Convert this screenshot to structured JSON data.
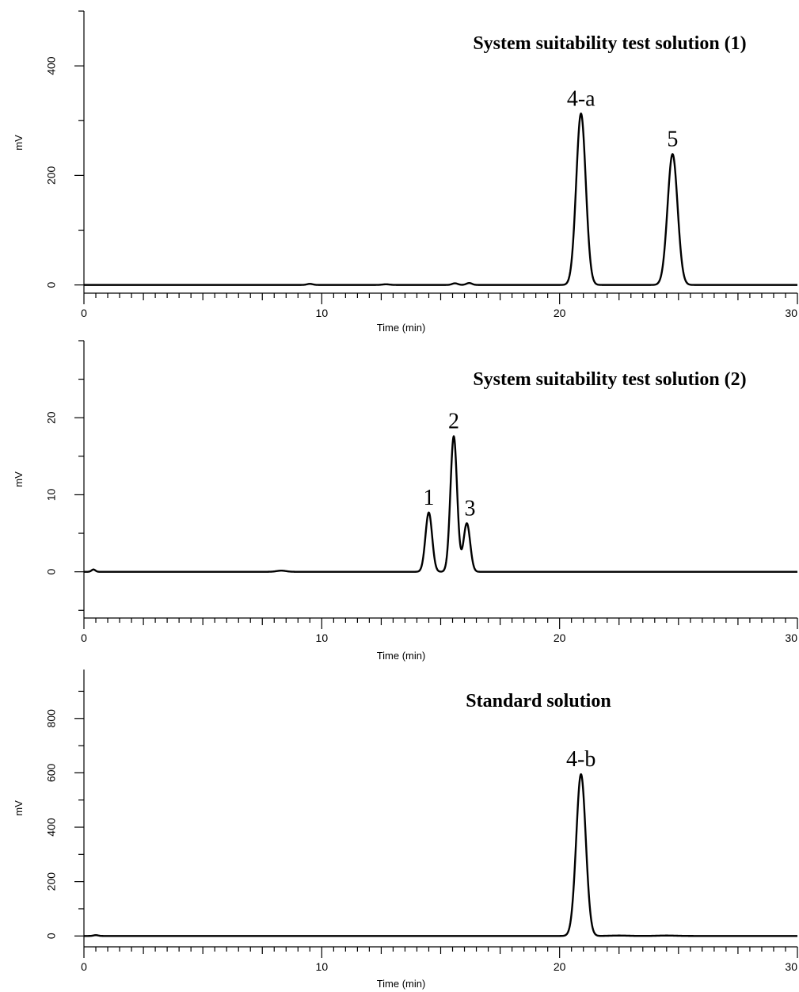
{
  "chart_data": [
    {
      "type": "line",
      "title": "System suitability test solution (1)",
      "xlabel": "Time (min)",
      "ylabel": "mV",
      "xlim": [
        0,
        30
      ],
      "ylim": [
        -15,
        500
      ],
      "x_ticks": [
        0,
        10,
        20,
        30
      ],
      "y_ticks": [
        0,
        200,
        400
      ],
      "baseline": 0,
      "peaks": [
        {
          "label": "4-a",
          "time": 20.9,
          "height": 313,
          "sigma": 0.2
        },
        {
          "label": "5",
          "time": 24.75,
          "height": 239,
          "sigma": 0.21
        }
      ],
      "minor_peaks": [
        {
          "time": 9.5,
          "height": 2,
          "sigma": 0.12
        },
        {
          "time": 12.7,
          "height": 1.2,
          "sigma": 0.15
        },
        {
          "time": 15.6,
          "height": 3,
          "sigma": 0.12
        },
        {
          "time": 16.2,
          "height": 3.5,
          "sigma": 0.12
        }
      ]
    },
    {
      "type": "line",
      "title": "System suitability test solution (2)",
      "xlabel": "Time (min)",
      "ylabel": "mV",
      "xlim": [
        0,
        30
      ],
      "ylim": [
        -6,
        30
      ],
      "x_ticks": [
        0,
        10,
        20,
        30
      ],
      "y_ticks": [
        0,
        10,
        20
      ],
      "baseline": 0,
      "peaks": [
        {
          "label": "1",
          "time": 14.5,
          "height": 7.7,
          "sigma": 0.14
        },
        {
          "label": "2",
          "time": 15.55,
          "height": 17.6,
          "sigma": 0.14
        },
        {
          "label": "3",
          "time": 16.1,
          "height": 6.3,
          "sigma": 0.14
        }
      ],
      "minor_peaks": [
        {
          "time": 0.4,
          "height": 0.3,
          "sigma": 0.08
        },
        {
          "time": 8.3,
          "height": 0.15,
          "sigma": 0.2
        }
      ]
    },
    {
      "type": "line",
      "title": "Standard solution",
      "xlabel": "Time (min)",
      "ylabel": "mV",
      "xlim": [
        0,
        30
      ],
      "ylim": [
        -40,
        980
      ],
      "x_ticks": [
        0,
        10,
        20,
        30
      ],
      "y_ticks": [
        0,
        200,
        400,
        600,
        800
      ],
      "baseline": 0,
      "peaks": [
        {
          "label": "4-b",
          "time": 20.9,
          "height": 595,
          "sigma": 0.2
        }
      ],
      "minor_peaks": [
        {
          "time": 0.5,
          "height": 3,
          "sigma": 0.1
        },
        {
          "time": 22.5,
          "height": 1.5,
          "sigma": 0.4
        },
        {
          "time": 24.5,
          "height": 1.5,
          "sigma": 0.4
        }
      ]
    }
  ]
}
